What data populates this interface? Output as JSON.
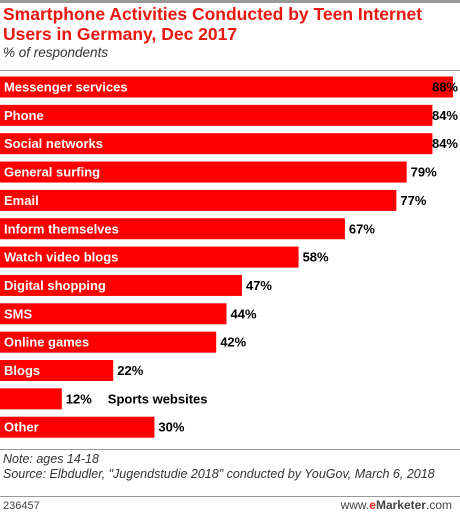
{
  "header": {
    "title": "Smartphone Activities Conducted by Teen Internet Users in Germany, Dec 2017",
    "subtitle": "% of respondents"
  },
  "colors": {
    "bar": "#ff0000",
    "title": "#e8170f"
  },
  "chart_data": {
    "type": "bar",
    "orientation": "horizontal",
    "categories": [
      "Messenger services",
      "Phone",
      "Social networks",
      "General surfing",
      "Email",
      "Inform themselves",
      "Watch video blogs",
      "Digital shopping",
      "SMS",
      "Online games",
      "Blogs",
      "Sports websites",
      "Other"
    ],
    "values": [
      88,
      84,
      84,
      79,
      77,
      67,
      58,
      47,
      44,
      42,
      22,
      12,
      30
    ],
    "value_labels": [
      "88%",
      "84%",
      "84%",
      "79%",
      "77%",
      "67%",
      "58%",
      "47%",
      "44%",
      "42%",
      "22%",
      "12%",
      "30%"
    ],
    "unit": "%",
    "title": "Smartphone Activities Conducted by Teen Internet Users in Germany, Dec 2017",
    "ylabel": "% of respondents",
    "xlim": [
      0,
      88
    ],
    "grid": false,
    "legend": "none"
  },
  "notes": {
    "note": "Note: ages 14-18",
    "source": "Source: Elbdudler, \"Jugendstudie 2018\" conducted by YouGov, March 6, 2018"
  },
  "footer": {
    "chart_id": "236457",
    "brand_prefix": "www.",
    "brand_e": "e",
    "brand_rest": "Marketer",
    "brand_suffix": ".com"
  }
}
